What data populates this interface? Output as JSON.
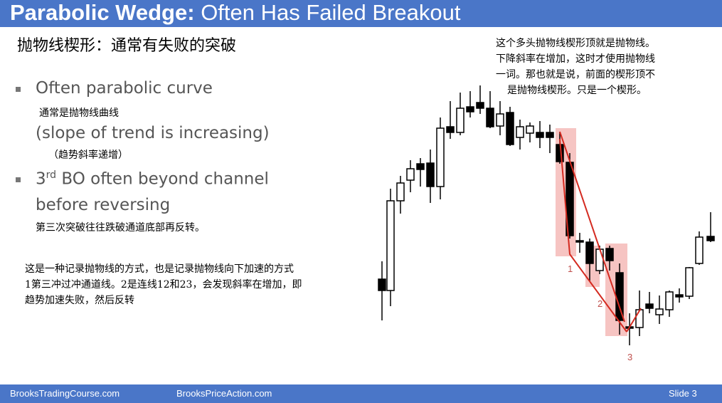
{
  "header": {
    "title_bold": "Parabolic Wedge:",
    "title_rest": "Often Has Failed Breakout"
  },
  "subtitle_cn": "抛物线楔形：通常有失败的突破",
  "bullets": [
    {
      "lines": [
        "Often parabolic curve"
      ],
      "cn": "通常是抛物线曲线",
      "paren": "(slope of trend is increasing)",
      "paren_cn": "（趋势斜率递增）"
    },
    {
      "num": "3",
      "sup": "rd",
      "rest": " BO often beyond channel",
      "line2": "before reversing",
      "cn": "第三次突破往往跌破通道底部再反转。"
    }
  ],
  "right_note": [
    "这个多头抛物线楔形顶就是抛物线。",
    "下降斜率在增加，这时才使用抛物线",
    "一词。那也就是说，前面的楔形顶不",
    "是抛物线楔形。只是一个楔形。"
  ],
  "left_note": [
    "这是一种记录抛物线的方式，也是记录抛物线向下加速的方式",
    "1第三冲过冲通道线。2是连线12和23，会发现斜率在增加，即",
    "趋势加速失败，然后反转"
  ],
  "chart_labels": [
    "1",
    "2",
    "3"
  ],
  "footer": {
    "left": "BrooksTradingCourse.com",
    "middle": "BrooksPriceAction.com",
    "right": "Slide 3"
  }
}
